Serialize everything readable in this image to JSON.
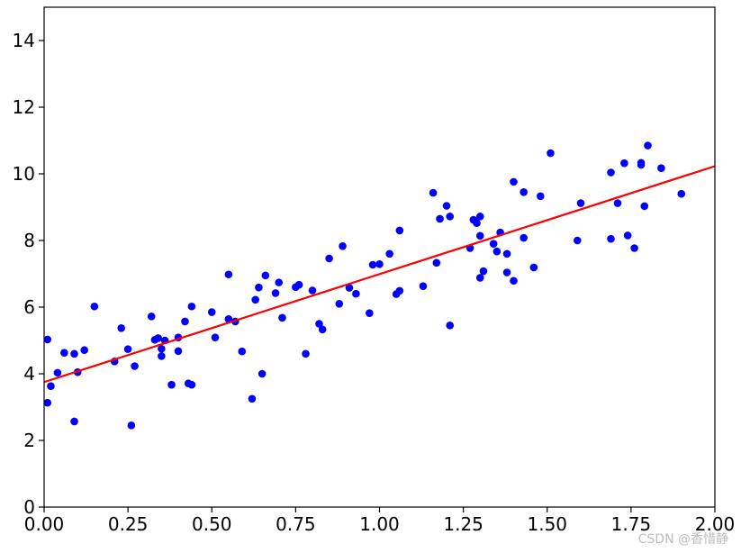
{
  "watermark": "CSDN @香惜静",
  "chart_data": {
    "type": "scatter",
    "title": "",
    "xlabel": "",
    "ylabel": "",
    "xlim": [
      0,
      2
    ],
    "ylim": [
      0,
      15
    ],
    "x_ticks": [
      0.0,
      0.25,
      0.5,
      0.75,
      1.0,
      1.25,
      1.5,
      1.75,
      2.0
    ],
    "x_tick_labels": [
      "0.00",
      "0.25",
      "0.50",
      "0.75",
      "1.00",
      "1.25",
      "1.50",
      "1.75",
      "2.00"
    ],
    "y_ticks": [
      0,
      2,
      4,
      6,
      8,
      10,
      12,
      14
    ],
    "y_tick_labels": [
      "0",
      "2",
      "4",
      "6",
      "8",
      "10",
      "12",
      "14"
    ],
    "grid": false,
    "colors": {
      "points": "#0000ff",
      "line": "#ff0000",
      "axes": "#000000"
    },
    "series": [
      {
        "kind": "scatter",
        "color": "#0000ff",
        "points": [
          [
            0.01,
            5.03
          ],
          [
            0.01,
            3.13
          ],
          [
            0.02,
            3.63
          ],
          [
            0.04,
            4.03
          ],
          [
            0.06,
            4.63
          ],
          [
            0.09,
            4.6
          ],
          [
            0.09,
            2.57
          ],
          [
            0.1,
            4.05
          ],
          [
            0.12,
            4.71
          ],
          [
            0.15,
            6.02
          ],
          [
            0.21,
            4.37
          ],
          [
            0.23,
            5.37
          ],
          [
            0.25,
            4.74
          ],
          [
            0.26,
            2.45
          ],
          [
            0.27,
            4.23
          ],
          [
            0.32,
            5.72
          ],
          [
            0.33,
            5.02
          ],
          [
            0.34,
            5.07
          ],
          [
            0.35,
            4.75
          ],
          [
            0.35,
            4.53
          ],
          [
            0.36,
            5.0
          ],
          [
            0.38,
            3.67
          ],
          [
            0.4,
            4.68
          ],
          [
            0.4,
            5.09
          ],
          [
            0.42,
            5.57
          ],
          [
            0.43,
            3.71
          ],
          [
            0.44,
            3.67
          ],
          [
            0.44,
            6.02
          ],
          [
            0.5,
            5.85
          ],
          [
            0.51,
            5.09
          ],
          [
            0.55,
            5.64
          ],
          [
            0.55,
            6.98
          ],
          [
            0.57,
            5.57
          ],
          [
            0.59,
            4.67
          ],
          [
            0.62,
            3.25
          ],
          [
            0.63,
            6.22
          ],
          [
            0.64,
            6.59
          ],
          [
            0.65,
            4.0
          ],
          [
            0.66,
            6.95
          ],
          [
            0.69,
            6.42
          ],
          [
            0.7,
            6.74
          ],
          [
            0.71,
            5.68
          ],
          [
            0.75,
            6.6
          ],
          [
            0.76,
            6.67
          ],
          [
            0.78,
            4.6
          ],
          [
            0.8,
            6.5
          ],
          [
            0.82,
            5.5
          ],
          [
            0.83,
            5.33
          ],
          [
            0.85,
            7.46
          ],
          [
            0.88,
            6.1
          ],
          [
            0.89,
            7.83
          ],
          [
            0.91,
            6.58
          ],
          [
            0.93,
            6.4
          ],
          [
            0.97,
            5.82
          ],
          [
            0.98,
            7.27
          ],
          [
            1.0,
            7.29
          ],
          [
            1.03,
            7.6
          ],
          [
            1.05,
            6.39
          ],
          [
            1.06,
            6.49
          ],
          [
            1.06,
            8.3
          ],
          [
            1.13,
            6.63
          ],
          [
            1.16,
            9.43
          ],
          [
            1.17,
            7.33
          ],
          [
            1.18,
            8.65
          ],
          [
            1.2,
            9.04
          ],
          [
            1.21,
            8.72
          ],
          [
            1.21,
            5.45
          ],
          [
            1.27,
            7.77
          ],
          [
            1.28,
            8.62
          ],
          [
            1.29,
            8.52
          ],
          [
            1.3,
            8.72
          ],
          [
            1.3,
            6.88
          ],
          [
            1.3,
            8.14
          ],
          [
            1.31,
            7.08
          ],
          [
            1.34,
            7.9
          ],
          [
            1.35,
            7.67
          ],
          [
            1.36,
            8.24
          ],
          [
            1.38,
            7.6
          ],
          [
            1.38,
            7.04
          ],
          [
            1.4,
            6.79
          ],
          [
            1.4,
            9.76
          ],
          [
            1.43,
            9.45
          ],
          [
            1.43,
            8.08
          ],
          [
            1.46,
            7.19
          ],
          [
            1.48,
            9.33
          ],
          [
            1.51,
            10.62
          ],
          [
            1.59,
            8.0
          ],
          [
            1.6,
            9.12
          ],
          [
            1.69,
            8.05
          ],
          [
            1.69,
            10.04
          ],
          [
            1.71,
            9.12
          ],
          [
            1.73,
            10.32
          ],
          [
            1.74,
            8.15
          ],
          [
            1.76,
            7.77
          ],
          [
            1.78,
            10.33
          ],
          [
            1.78,
            10.27
          ],
          [
            1.79,
            9.03
          ],
          [
            1.8,
            10.85
          ],
          [
            1.84,
            10.17
          ],
          [
            1.9,
            9.4
          ]
        ]
      },
      {
        "kind": "line",
        "color": "#ff0000",
        "x": [
          0,
          2
        ],
        "y": [
          3.75,
          10.23
        ]
      }
    ]
  }
}
